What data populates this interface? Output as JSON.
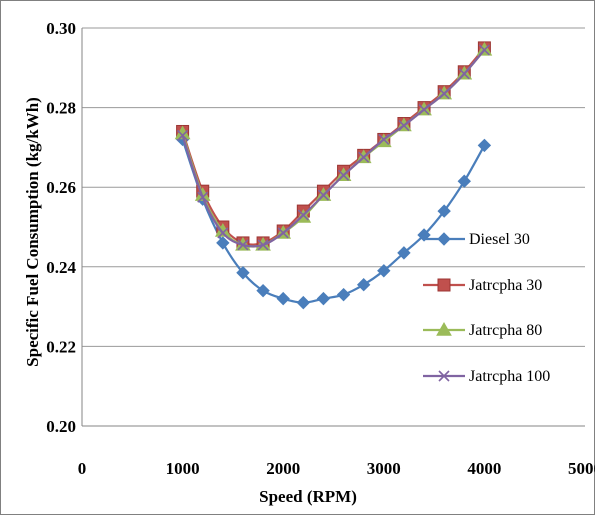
{
  "chart_data": {
    "type": "line",
    "title": "",
    "xlabel": "Speed (RPM)",
    "ylabel": "Specific Fuel Consumption (kg/kWh)",
    "xlim": [
      0,
      5000
    ],
    "ylim": [
      0.2,
      0.3
    ],
    "xticks": [
      "0",
      "1000",
      "2000",
      "3000",
      "4000",
      "5000"
    ],
    "yticks": [
      "0.20",
      "0.22",
      "0.24",
      "0.26",
      "0.28",
      "0.30"
    ],
    "grid": "horizontal",
    "legend_position": "right",
    "series": [
      {
        "name": "Diesel 30",
        "color": "#4a7ebb",
        "marker": "diamond",
        "x": [
          1000,
          1200,
          1400,
          1600,
          1800,
          2000,
          2200,
          2400,
          2600,
          2800,
          3000,
          3200,
          3400,
          3600,
          3800,
          4000
        ],
        "values": [
          0.272,
          0.257,
          0.246,
          0.2385,
          0.234,
          0.232,
          0.231,
          0.232,
          0.233,
          0.2355,
          0.239,
          0.2435,
          0.248,
          0.254,
          0.2615,
          0.2705
        ]
      },
      {
        "name": "Jatrcpha 30",
        "color": "#c0504d",
        "marker": "square",
        "x": [
          1000,
          1200,
          1400,
          1600,
          1800,
          2000,
          2200,
          2400,
          2600,
          2800,
          3000,
          3200,
          3400,
          3600,
          3800,
          4000
        ],
        "values": [
          0.274,
          0.259,
          0.25,
          0.246,
          0.246,
          0.249,
          0.254,
          0.259,
          0.264,
          0.268,
          0.272,
          0.276,
          0.28,
          0.284,
          0.289,
          0.295
        ]
      },
      {
        "name": "Jatrcpha 80",
        "color": "#9bbb59",
        "marker": "triangle",
        "x": [
          1000,
          1200,
          1400,
          1600,
          1800,
          2000,
          2200,
          2400,
          2600,
          2800,
          3000,
          3200,
          3400,
          3600,
          3800,
          4000
        ],
        "values": [
          0.2735,
          0.258,
          0.249,
          0.2455,
          0.2455,
          0.2485,
          0.2525,
          0.258,
          0.263,
          0.2675,
          0.2715,
          0.2755,
          0.2795,
          0.2835,
          0.2885,
          0.2945
        ]
      },
      {
        "name": "Jatrcpha 100",
        "color": "#8064a2",
        "marker": "x",
        "x": [
          1000,
          1200,
          1400,
          1600,
          1800,
          2000,
          2200,
          2400,
          2600,
          2800,
          3000,
          3200,
          3400,
          3600,
          3800,
          4000
        ],
        "values": [
          0.273,
          0.2575,
          0.2485,
          0.2455,
          0.2455,
          0.2485,
          0.253,
          0.258,
          0.263,
          0.2675,
          0.272,
          0.2755,
          0.2795,
          0.2835,
          0.2885,
          0.2945
        ]
      }
    ]
  }
}
